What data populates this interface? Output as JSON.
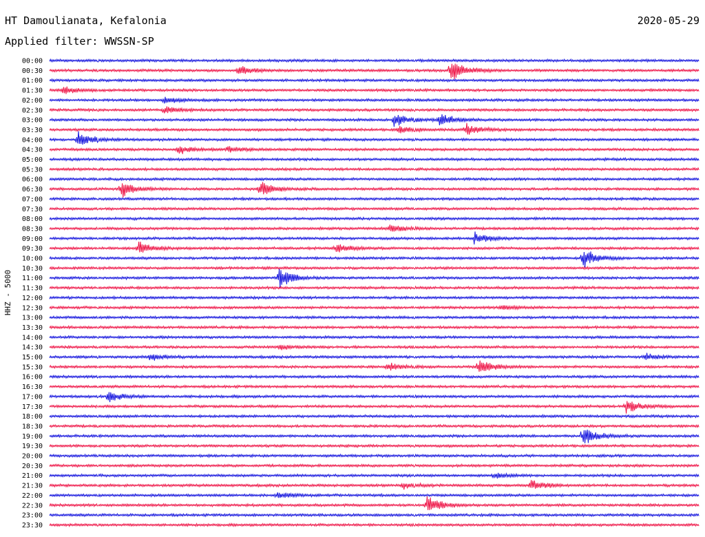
{
  "header": {
    "station": "HT Damoulianata, Kefalonia",
    "date": "2020-05-29",
    "filter": "Applied filter: WWSSN-SP"
  },
  "chart_data": {
    "type": "line",
    "title": "HT Damoulianata, Kefalonia",
    "ylabel": "HHZ - 5000",
    "rows": [
      "00:00",
      "00:30",
      "01:00",
      "01:30",
      "02:00",
      "02:30",
      "03:00",
      "03:30",
      "04:00",
      "04:30",
      "05:00",
      "05:30",
      "06:00",
      "06:30",
      "07:00",
      "07:30",
      "08:00",
      "08:30",
      "09:00",
      "09:30",
      "10:00",
      "10:30",
      "11:00",
      "11:30",
      "12:00",
      "12:30",
      "13:00",
      "13:30",
      "14:00",
      "14:30",
      "15:00",
      "15:30",
      "16:00",
      "16:30",
      "17:00",
      "17:30",
      "18:00",
      "18:30",
      "19:00",
      "19:30",
      "20:00",
      "20:30",
      "21:00",
      "21:30",
      "22:00",
      "22:30",
      "23:00",
      "23:30"
    ],
    "trace_minutes": 30,
    "colors": [
      "#1010dd",
      "#ee1144"
    ],
    "events": [
      {
        "row": 1,
        "minute": 18.5,
        "amp": 1.4
      },
      {
        "row": 1,
        "minute": 8.7,
        "amp": 0.6
      },
      {
        "row": 3,
        "minute": 0.6,
        "amp": 0.5
      },
      {
        "row": 4,
        "minute": 5.3,
        "amp": 0.5
      },
      {
        "row": 5,
        "minute": 5.3,
        "amp": 0.5
      },
      {
        "row": 6,
        "minute": 15.9,
        "amp": 0.9
      },
      {
        "row": 6,
        "minute": 18.0,
        "amp": 0.8
      },
      {
        "row": 7,
        "minute": 16.1,
        "amp": 0.5
      },
      {
        "row": 7,
        "minute": 19.2,
        "amp": 0.7
      },
      {
        "row": 8,
        "minute": 1.3,
        "amp": 1.0
      },
      {
        "row": 9,
        "minute": 5.9,
        "amp": 0.5
      },
      {
        "row": 9,
        "minute": 8.2,
        "amp": 0.4
      },
      {
        "row": 13,
        "minute": 3.3,
        "amp": 1.0
      },
      {
        "row": 13,
        "minute": 9.7,
        "amp": 1.0
      },
      {
        "row": 17,
        "minute": 15.7,
        "amp": 0.5
      },
      {
        "row": 18,
        "minute": 19.6,
        "amp": 0.7
      },
      {
        "row": 19,
        "minute": 4.1,
        "amp": 0.8
      },
      {
        "row": 19,
        "minute": 13.2,
        "amp": 0.6
      },
      {
        "row": 20,
        "minute": 24.6,
        "amp": 1.2
      },
      {
        "row": 22,
        "minute": 10.6,
        "amp": 1.3
      },
      {
        "row": 25,
        "minute": 20.8,
        "amp": 0.3
      },
      {
        "row": 29,
        "minute": 10.6,
        "amp": 0.3
      },
      {
        "row": 30,
        "minute": 4.6,
        "amp": 0.5
      },
      {
        "row": 30,
        "minute": 27.5,
        "amp": 0.4
      },
      {
        "row": 31,
        "minute": 15.6,
        "amp": 0.5
      },
      {
        "row": 31,
        "minute": 19.8,
        "amp": 1.0
      },
      {
        "row": 34,
        "minute": 2.7,
        "amp": 0.7
      },
      {
        "row": 35,
        "minute": 26.6,
        "amp": 0.8
      },
      {
        "row": 38,
        "minute": 24.6,
        "amp": 1.2
      },
      {
        "row": 43,
        "minute": 22.2,
        "amp": 0.7
      },
      {
        "row": 43,
        "minute": 16.3,
        "amp": 0.4
      },
      {
        "row": 44,
        "minute": 10.5,
        "amp": 0.4
      },
      {
        "row": 45,
        "minute": 17.4,
        "amp": 1.2
      },
      {
        "row": 42,
        "minute": 20.5,
        "amp": 0.3
      }
    ]
  }
}
